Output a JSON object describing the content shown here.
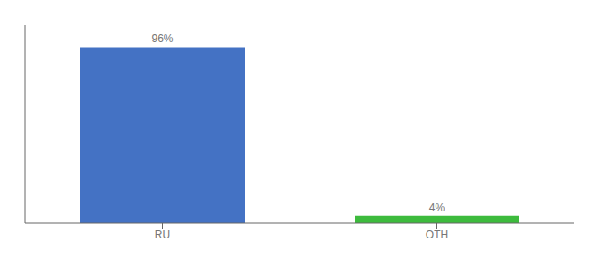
{
  "chart_data": {
    "type": "bar",
    "categories": [
      "RU",
      "OTH"
    ],
    "values": [
      96,
      4
    ],
    "colors": [
      "#4472c4",
      "#3dbb3d"
    ],
    "data_labels": true,
    "value_labels": [
      "96%",
      "4%"
    ],
    "ylim": [
      0,
      108
    ],
    "tick_labels": "x"
  }
}
